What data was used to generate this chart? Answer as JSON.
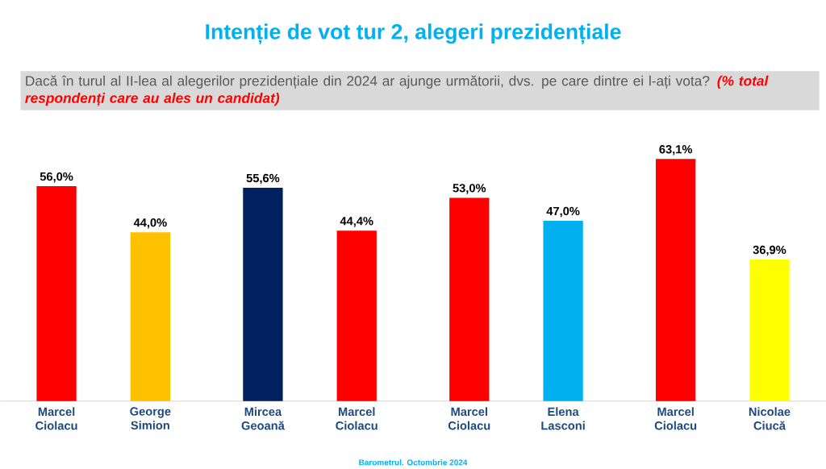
{
  "chart_data": [
    {
      "type": "other",
      "title": "Intenție de vot tur 2, alegeri prezidențiale",
      "subtitle": "Dacă în turul al II-lea al alegerilor prezidențiale din 2024 ar ajunge următorii, dvs. pe care dintre ei l-ați vota?",
      "annotations": [
        "(% total respondenți care au ales un candidat)",
        "Barometrul. Octombrie 2024"
      ]
    },
    {
      "type": "bar",
      "categories": [
        "Marcel Ciolacu",
        "George Simion"
      ],
      "values": [
        56.0,
        44.0
      ],
      "colors": [
        "#ff0000",
        "#ffc000"
      ],
      "value_labels": [
        "56,0%",
        "44,0%"
      ],
      "tick_labels": "x"
    },
    {
      "type": "bar",
      "categories": [
        "Mircea Geoană",
        "Marcel Ciolacu"
      ],
      "values": [
        55.6,
        44.4
      ],
      "colors": [
        "#002060",
        "#ff0000"
      ],
      "value_labels": [
        "55,6%",
        "44,4%"
      ],
      "tick_labels": "x"
    },
    {
      "type": "bar",
      "categories": [
        "Marcel Ciolacu",
        "Elena Lasconi"
      ],
      "values": [
        53.0,
        47.0
      ],
      "colors": [
        "#ff0000",
        "#00b0f0"
      ],
      "value_labels": [
        "53,0%",
        "47,0%"
      ],
      "tick_labels": "x"
    },
    {
      "type": "bar",
      "categories": [
        "Marcel Ciolacu",
        "Nicolae Ciucă"
      ],
      "values": [
        63.1,
        36.9
      ],
      "colors": [
        "#ff0000",
        "#ffff00"
      ],
      "value_labels": [
        "63,1%",
        "36,9%"
      ],
      "tick_labels": "x"
    }
  ]
}
